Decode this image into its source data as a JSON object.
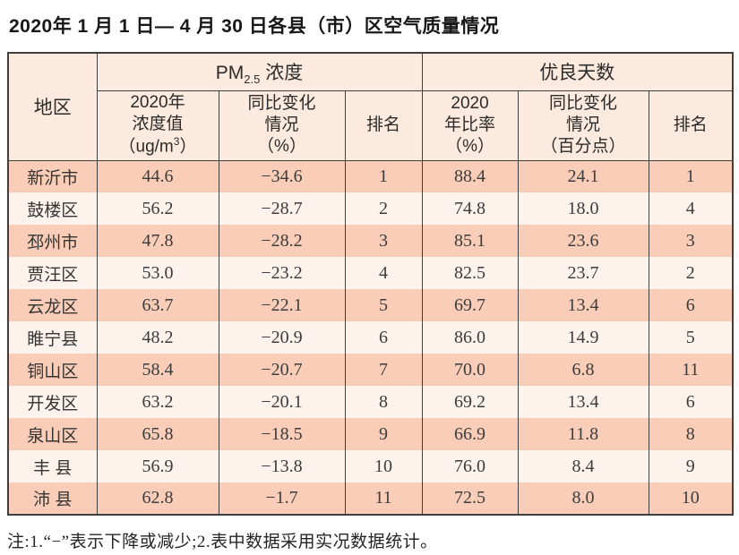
{
  "title": "2020年 1 月 1 日— 4 月 30 日各县（市）区空气质量情况",
  "table": {
    "col_region": "地区",
    "group_pm25": {
      "pre": "PM",
      "sub": "2.5",
      "post": " 浓度"
    },
    "group_days": "优良天数",
    "sub_headers": {
      "pm_value": {
        "line1": "2020年",
        "line2": "浓度值",
        "line3_pre": "（ug/m",
        "line3_sup": "3",
        "line3_post": "）"
      },
      "pm_change": {
        "line1": "同比变化",
        "line2": "情况",
        "line3": "（%）"
      },
      "pm_rank": "排名",
      "days_rate": {
        "line1": "2020",
        "line2": "年比率",
        "line3": "（%）"
      },
      "days_change": {
        "line1": "同比变化",
        "line2": "情况",
        "line3": "（百分点）"
      },
      "days_rank": "排名"
    },
    "rows": [
      {
        "region": "新沂市",
        "pm_value": "44.6",
        "pm_change": "−34.6",
        "pm_rank": "1",
        "days_rate": "88.4",
        "days_change": "24.1",
        "days_rank": "1"
      },
      {
        "region": "鼓楼区",
        "pm_value": "56.2",
        "pm_change": "−28.7",
        "pm_rank": "2",
        "days_rate": "74.8",
        "days_change": "18.0",
        "days_rank": "4"
      },
      {
        "region": "邳州市",
        "pm_value": "47.8",
        "pm_change": "−28.2",
        "pm_rank": "3",
        "days_rate": "85.1",
        "days_change": "23.6",
        "days_rank": "3"
      },
      {
        "region": "贾汪区",
        "pm_value": "53.0",
        "pm_change": "−23.2",
        "pm_rank": "4",
        "days_rate": "82.5",
        "days_change": "23.7",
        "days_rank": "2"
      },
      {
        "region": "云龙区",
        "pm_value": "63.7",
        "pm_change": "−22.1",
        "pm_rank": "5",
        "days_rate": "69.7",
        "days_change": "13.4",
        "days_rank": "6"
      },
      {
        "region": "睢宁县",
        "pm_value": "48.2",
        "pm_change": "−20.9",
        "pm_rank": "6",
        "days_rate": "86.0",
        "days_change": "14.9",
        "days_rank": "5"
      },
      {
        "region": "铜山区",
        "pm_value": "58.4",
        "pm_change": "−20.7",
        "pm_rank": "7",
        "days_rate": "70.0",
        "days_change": "6.8",
        "days_rank": "11"
      },
      {
        "region": "开发区",
        "pm_value": "63.2",
        "pm_change": "−20.1",
        "pm_rank": "8",
        "days_rate": "69.2",
        "days_change": "13.4",
        "days_rank": "6"
      },
      {
        "region": "泉山区",
        "pm_value": "65.8",
        "pm_change": "−18.5",
        "pm_rank": "9",
        "days_rate": "66.9",
        "days_change": "11.8",
        "days_rank": "8"
      },
      {
        "region": "丰 县",
        "pm_value": "56.9",
        "pm_change": "−13.8",
        "pm_rank": "10",
        "days_rate": "76.0",
        "days_change": "8.4",
        "days_rank": "9"
      },
      {
        "region": "沛 县",
        "pm_value": "62.8",
        "pm_change": "−1.7",
        "pm_rank": "11",
        "days_rate": "72.5",
        "days_change": "8.0",
        "days_rank": "10"
      }
    ]
  },
  "footnote": "注:1.“−”表示下降或减少;2.表中数据采用实况数据统计。",
  "colors": {
    "row_odd": "#f9cdb7",
    "row_even": "#fdf2ec",
    "header_bg": "#fceade",
    "border": "#3f3f3f"
  },
  "chart_data": {
    "type": "table",
    "title": "2020年 1 月 1 日— 4 月 30 日各县（市）区空气质量情况",
    "columns": [
      "地区",
      "PM2.5浓度 2020年浓度值（ug/m3）",
      "PM2.5浓度 同比变化情况（%）",
      "PM2.5浓度 排名",
      "优良天数 2020年比率（%）",
      "优良天数 同比变化情况（百分点）",
      "优良天数 排名"
    ],
    "rows": [
      [
        "新沂市",
        44.6,
        -34.6,
        1,
        88.4,
        24.1,
        1
      ],
      [
        "鼓楼区",
        56.2,
        -28.7,
        2,
        74.8,
        18.0,
        4
      ],
      [
        "邳州市",
        47.8,
        -28.2,
        3,
        85.1,
        23.6,
        3
      ],
      [
        "贾汪区",
        53.0,
        -23.2,
        4,
        82.5,
        23.7,
        2
      ],
      [
        "云龙区",
        63.7,
        -22.1,
        5,
        69.7,
        13.4,
        6
      ],
      [
        "睢宁县",
        48.2,
        -20.9,
        6,
        86.0,
        14.9,
        5
      ],
      [
        "铜山区",
        58.4,
        -20.7,
        7,
        70.0,
        6.8,
        11
      ],
      [
        "开发区",
        63.2,
        -20.1,
        8,
        69.2,
        13.4,
        6
      ],
      [
        "泉山区",
        65.8,
        -18.5,
        9,
        66.9,
        11.8,
        8
      ],
      [
        "丰 县",
        56.9,
        -13.8,
        10,
        76.0,
        8.4,
        9
      ],
      [
        "沛 县",
        62.8,
        -1.7,
        11,
        72.5,
        8.0,
        10
      ]
    ]
  }
}
